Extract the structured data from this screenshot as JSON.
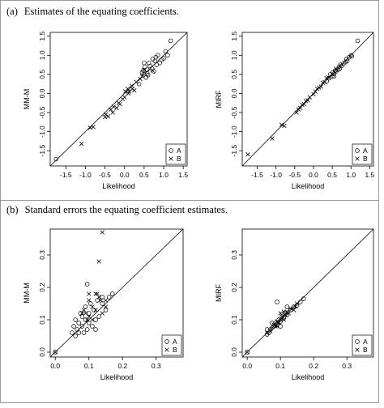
{
  "captions": {
    "a": {
      "label": "(a)",
      "text": "Estimates of the equating coefficients."
    },
    "b": {
      "label": "(b)",
      "text": "Standard errors the equating coefficient estimates."
    }
  },
  "chart_data": [
    {
      "type": "scatter",
      "panel": "a-left",
      "title": "",
      "xlabel": "Likelihood",
      "ylabel": "MM-M",
      "xlim": [
        -1.9,
        1.6
      ],
      "ylim": [
        -1.9,
        1.6
      ],
      "xticks": [
        "-1.5",
        "-1.0",
        "-0.5",
        "0.0",
        "0.5",
        "1.0",
        "1.5"
      ],
      "yticks": [
        "-1.5",
        "-1.0",
        "-0.5",
        "0.0",
        "0.5",
        "1.0",
        "1.5"
      ],
      "reference_line": "y = x",
      "legend": {
        "position": "bottom-right",
        "entries": [
          {
            "name": "A",
            "marker": "circle"
          },
          {
            "name": "B",
            "marker": "cross"
          }
        ]
      },
      "series": [
        {
          "name": "A",
          "marker": "circle",
          "points": [
            [
              -1.75,
              -1.72
            ],
            [
              0.37,
              0.25
            ],
            [
              0.45,
              0.55
            ],
            [
              0.48,
              0.6
            ],
            [
              0.5,
              0.5
            ],
            [
              0.52,
              0.7
            ],
            [
              0.55,
              0.42
            ],
            [
              0.58,
              0.62
            ],
            [
              0.6,
              0.48
            ],
            [
              0.62,
              0.8
            ],
            [
              0.65,
              0.72
            ],
            [
              0.7,
              0.65
            ],
            [
              0.72,
              0.9
            ],
            [
              0.75,
              0.58
            ],
            [
              0.78,
              0.85
            ],
            [
              0.8,
              0.95
            ],
            [
              0.82,
              0.75
            ],
            [
              0.85,
              1.0
            ],
            [
              0.9,
              0.8
            ],
            [
              0.95,
              0.88
            ],
            [
              1.0,
              0.92
            ],
            [
              1.05,
              1.1
            ],
            [
              1.1,
              1.0
            ],
            [
              1.18,
              1.38
            ],
            [
              0.5,
              0.8
            ],
            [
              0.58,
              0.52
            ]
          ]
        },
        {
          "name": "B",
          "marker": "cross",
          "points": [
            [
              -1.1,
              -1.32
            ],
            [
              -0.88,
              -0.9
            ],
            [
              -0.8,
              -0.88
            ],
            [
              -0.5,
              -0.62
            ],
            [
              -0.48,
              -0.55
            ],
            [
              -0.42,
              -0.6
            ],
            [
              -0.35,
              -0.42
            ],
            [
              -0.3,
              -0.5
            ],
            [
              -0.28,
              -0.35
            ],
            [
              -0.2,
              -0.38
            ],
            [
              -0.15,
              -0.25
            ],
            [
              -0.12,
              -0.28
            ],
            [
              -0.05,
              -0.15
            ],
            [
              0.0,
              -0.1
            ],
            [
              0.02,
              0.05
            ],
            [
              0.08,
              0.12
            ],
            [
              0.1,
              0.0
            ],
            [
              0.12,
              0.05
            ],
            [
              0.18,
              0.2
            ],
            [
              0.2,
              0.12
            ],
            [
              0.25,
              0.08
            ],
            [
              0.3,
              0.3
            ],
            [
              0.4,
              0.38
            ],
            [
              0.45,
              0.45
            ],
            [
              0.5,
              0.62
            ],
            [
              0.72,
              0.6
            ]
          ]
        }
      ]
    },
    {
      "type": "scatter",
      "panel": "a-right",
      "title": "",
      "xlabel": "Likelihood",
      "ylabel": "MIRF",
      "xlim": [
        -1.9,
        1.6
      ],
      "ylim": [
        -1.9,
        1.6
      ],
      "xticks": [
        "-1.5",
        "-1.0",
        "-0.5",
        "0.0",
        "0.5",
        "1.0",
        "1.5"
      ],
      "yticks": [
        "-1.5",
        "-1.0",
        "-0.5",
        "0.0",
        "0.5",
        "1.0",
        "1.5"
      ],
      "reference_line": "y = x",
      "legend": {
        "position": "bottom-right",
        "entries": [
          {
            "name": "A",
            "marker": "circle"
          },
          {
            "name": "B",
            "marker": "cross"
          }
        ]
      },
      "series": [
        {
          "name": "A",
          "marker": "circle",
          "points": [
            [
              0.35,
              0.32
            ],
            [
              0.42,
              0.4
            ],
            [
              0.45,
              0.5
            ],
            [
              0.5,
              0.45
            ],
            [
              0.52,
              0.55
            ],
            [
              0.55,
              0.52
            ],
            [
              0.58,
              0.6
            ],
            [
              0.6,
              0.58
            ],
            [
              0.65,
              0.62
            ],
            [
              0.68,
              0.7
            ],
            [
              0.7,
              0.65
            ],
            [
              0.72,
              0.75
            ],
            [
              0.75,
              0.72
            ],
            [
              0.8,
              0.78
            ],
            [
              0.85,
              0.82
            ],
            [
              0.88,
              0.9
            ],
            [
              0.9,
              0.85
            ],
            [
              0.95,
              0.95
            ],
            [
              1.0,
              1.0
            ],
            [
              1.02,
              0.98
            ],
            [
              1.18,
              1.38
            ],
            [
              0.55,
              0.45
            ]
          ]
        },
        {
          "name": "B",
          "marker": "cross",
          "points": [
            [
              -1.75,
              -1.6
            ],
            [
              -1.1,
              -1.18
            ],
            [
              -0.85,
              -0.82
            ],
            [
              -0.78,
              -0.85
            ],
            [
              -0.45,
              -0.5
            ],
            [
              -0.4,
              -0.42
            ],
            [
              -0.35,
              -0.38
            ],
            [
              -0.3,
              -0.3
            ],
            [
              -0.25,
              -0.28
            ],
            [
              -0.2,
              -0.2
            ],
            [
              -0.15,
              -0.18
            ],
            [
              -0.1,
              -0.1
            ],
            [
              0.0,
              -0.02
            ],
            [
              0.05,
              0.05
            ],
            [
              0.1,
              0.12
            ],
            [
              0.15,
              0.15
            ],
            [
              0.2,
              0.18
            ],
            [
              0.25,
              0.28
            ],
            [
              0.3,
              0.3
            ],
            [
              0.35,
              0.4
            ],
            [
              0.4,
              0.42
            ],
            [
              0.5,
              0.5
            ],
            [
              0.6,
              0.65
            ]
          ]
        }
      ]
    },
    {
      "type": "scatter",
      "panel": "b-left",
      "title": "",
      "xlabel": "Likelihood",
      "ylabel": "MM-M",
      "xlim": [
        -0.015,
        0.38
      ],
      "ylim": [
        -0.015,
        0.38
      ],
      "xticks": [
        "0.0",
        "0.1",
        "0.2",
        "0.3"
      ],
      "yticks": [
        "0.0",
        "0.1",
        "0.2",
        "0.3"
      ],
      "reference_line": "y = x",
      "legend": {
        "position": "bottom-right",
        "entries": [
          {
            "name": "A",
            "marker": "circle"
          },
          {
            "name": "B",
            "marker": "cross"
          }
        ]
      },
      "series": [
        {
          "name": "A",
          "marker": "circle",
          "points": [
            [
              0.0,
              0.0
            ],
            [
              0.05,
              0.06
            ],
            [
              0.055,
              0.08
            ],
            [
              0.06,
              0.1
            ],
            [
              0.06,
              0.05
            ],
            [
              0.065,
              0.07
            ],
            [
              0.07,
              0.09
            ],
            [
              0.075,
              0.12
            ],
            [
              0.08,
              0.08
            ],
            [
              0.08,
              0.11
            ],
            [
              0.085,
              0.06
            ],
            [
              0.09,
              0.1
            ],
            [
              0.09,
              0.14
            ],
            [
              0.095,
              0.07
            ],
            [
              0.1,
              0.12
            ],
            [
              0.1,
              0.09
            ],
            [
              0.105,
              0.15
            ],
            [
              0.11,
              0.08
            ],
            [
              0.115,
              0.13
            ],
            [
              0.12,
              0.1
            ],
            [
              0.12,
              0.07
            ],
            [
              0.125,
              0.16
            ],
            [
              0.13,
              0.11
            ],
            [
              0.14,
              0.15
            ],
            [
              0.15,
              0.13
            ],
            [
              0.16,
              0.17
            ],
            [
              0.17,
              0.18
            ],
            [
              0.095,
              0.21
            ],
            [
              0.14,
              0.17
            ],
            [
              0.07,
              0.06
            ]
          ]
        },
        {
          "name": "B",
          "marker": "cross",
          "points": [
            [
              0.0,
              0.0
            ],
            [
              0.14,
              0.37
            ],
            [
              0.13,
              0.28
            ],
            [
              0.1,
              0.18
            ],
            [
              0.1,
              0.16
            ],
            [
              0.12,
              0.18
            ],
            [
              0.125,
              0.18
            ],
            [
              0.08,
              0.12
            ],
            [
              0.085,
              0.13
            ],
            [
              0.09,
              0.12
            ],
            [
              0.11,
              0.14
            ],
            [
              0.13,
              0.17
            ],
            [
              0.135,
              0.16
            ],
            [
              0.1,
              0.11
            ],
            [
              0.15,
              0.14
            ],
            [
              0.12,
              0.13
            ],
            [
              0.14,
              0.12
            ],
            [
              0.095,
              0.1
            ],
            [
              0.11,
              0.1
            ],
            [
              0.15,
              0.16
            ]
          ]
        }
      ]
    },
    {
      "type": "scatter",
      "panel": "b-right",
      "title": "",
      "xlabel": "Likelihood",
      "ylabel": "MIRF",
      "xlim": [
        -0.015,
        0.38
      ],
      "ylim": [
        -0.015,
        0.38
      ],
      "xticks": [
        "0.0",
        "0.1",
        "0.2",
        "0.3"
      ],
      "yticks": [
        "0.0",
        "0.1",
        "0.2",
        "0.3"
      ],
      "reference_line": "y = x",
      "legend": {
        "position": "bottom-right",
        "entries": [
          {
            "name": "A",
            "marker": "circle"
          },
          {
            "name": "B",
            "marker": "cross"
          }
        ]
      },
      "series": [
        {
          "name": "A",
          "marker": "circle",
          "points": [
            [
              0.0,
              0.0
            ],
            [
              0.06,
              0.055
            ],
            [
              0.065,
              0.06
            ],
            [
              0.07,
              0.07
            ],
            [
              0.075,
              0.075
            ],
            [
              0.08,
              0.08
            ],
            [
              0.085,
              0.09
            ],
            [
              0.09,
              0.085
            ],
            [
              0.095,
              0.1
            ],
            [
              0.1,
              0.095
            ],
            [
              0.105,
              0.11
            ],
            [
              0.11,
              0.105
            ],
            [
              0.115,
              0.12
            ],
            [
              0.12,
              0.115
            ],
            [
              0.13,
              0.13
            ],
            [
              0.14,
              0.14
            ],
            [
              0.15,
              0.145
            ],
            [
              0.16,
              0.155
            ],
            [
              0.17,
              0.165
            ],
            [
              0.09,
              0.155
            ],
            [
              0.12,
              0.14
            ],
            [
              0.06,
              0.07
            ],
            [
              0.075,
              0.09
            ],
            [
              0.1,
              0.08
            ]
          ]
        },
        {
          "name": "B",
          "marker": "cross",
          "points": [
            [
              0.0,
              0.0
            ],
            [
              0.06,
              0.06
            ],
            [
              0.07,
              0.065
            ],
            [
              0.08,
              0.085
            ],
            [
              0.085,
              0.08
            ],
            [
              0.09,
              0.095
            ],
            [
              0.095,
              0.09
            ],
            [
              0.1,
              0.1
            ],
            [
              0.105,
              0.11
            ],
            [
              0.11,
              0.1
            ],
            [
              0.115,
              0.115
            ],
            [
              0.12,
              0.125
            ],
            [
              0.125,
              0.12
            ],
            [
              0.13,
              0.135
            ],
            [
              0.14,
              0.13
            ],
            [
              0.145,
              0.14
            ],
            [
              0.15,
              0.15
            ],
            [
              0.1,
              0.12
            ],
            [
              0.09,
              0.08
            ],
            [
              0.11,
              0.125
            ]
          ]
        }
      ]
    }
  ]
}
